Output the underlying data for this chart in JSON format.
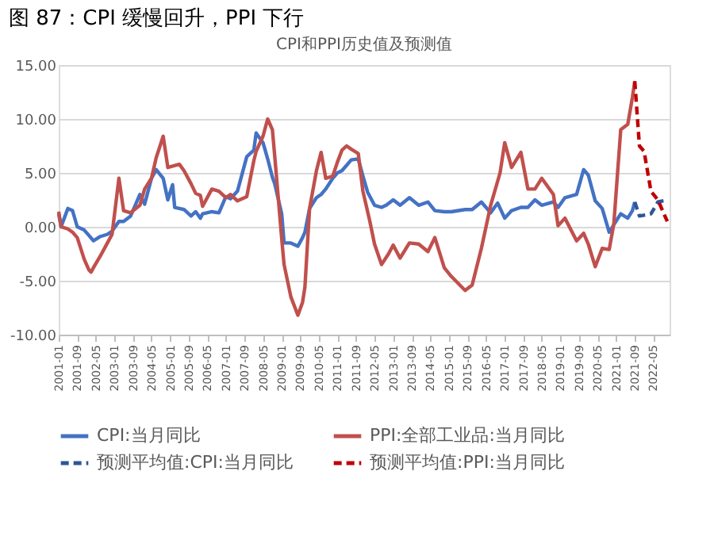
{
  "chart_data": {
    "type": "line",
    "title": "图 87：CPI 缓慢回升，PPI 下行",
    "subtitle": "CPI和PPI历史值及预测值",
    "ylim": [
      -10,
      15
    ],
    "yticks": [
      {
        "value": -10,
        "label": "-10.00"
      },
      {
        "value": -5,
        "label": "-5.00"
      },
      {
        "value": 0,
        "label": "0.00"
      },
      {
        "value": 5,
        "label": "5.00"
      },
      {
        "value": 10,
        "label": "10.00"
      },
      {
        "value": 15,
        "label": "15.00"
      }
    ],
    "xlim": [
      "2001-01",
      "2022-12"
    ],
    "xticks": [
      "2001-01",
      "2001-09",
      "2002-05",
      "2003-01",
      "2003-09",
      "2004-05",
      "2005-01",
      "2005-09",
      "2006-05",
      "2007-01",
      "2007-09",
      "2008-05",
      "2009-01",
      "2009-09",
      "2010-05",
      "2011-01",
      "2011-09",
      "2012-05",
      "2013-01",
      "2013-09",
      "2014-05",
      "2015-01",
      "2015-09",
      "2016-05",
      "2017-01",
      "2017-09",
      "2018-05",
      "2019-01",
      "2019-09",
      "2020-05",
      "2021-01",
      "2021-09",
      "2022-05"
    ],
    "grid": "y",
    "legend": "bottom",
    "series": [
      {
        "name": "CPI:当月同比",
        "color": "#4472c4",
        "line_style": "solid",
        "x": [
          "2001-01",
          "2001-02",
          "2001-05",
          "2001-07",
          "2001-09",
          "2001-12",
          "2002-02",
          "2002-04",
          "2002-07",
          "2002-10",
          "2002-12",
          "2003-03",
          "2003-05",
          "2003-08",
          "2003-12",
          "2004-02",
          "2004-05",
          "2004-07",
          "2004-10",
          "2004-12",
          "2005-02",
          "2005-03",
          "2005-05",
          "2005-07",
          "2005-10",
          "2005-12",
          "2006-02",
          "2006-03",
          "2006-07",
          "2006-10",
          "2007-01",
          "2007-03",
          "2007-06",
          "2007-10",
          "2008-01",
          "2008-02",
          "2008-05",
          "2008-07",
          "2008-09",
          "2008-10",
          "2009-01",
          "2009-02",
          "2009-05",
          "2009-08",
          "2009-10",
          "2009-11",
          "2010-01",
          "2010-04",
          "2010-06",
          "2010-08",
          "2010-11",
          "2011-01",
          "2011-03",
          "2011-05",
          "2011-07",
          "2011-10",
          "2011-12",
          "2012-02",
          "2012-05",
          "2012-08",
          "2012-10",
          "2013-01",
          "2013-04",
          "2013-08",
          "2013-12",
          "2014-04",
          "2014-07",
          "2014-11",
          "2015-02",
          "2015-08",
          "2015-11",
          "2016-03",
          "2016-07",
          "2016-10",
          "2017-01",
          "2017-04",
          "2017-08",
          "2017-11",
          "2018-02",
          "2018-05",
          "2018-10",
          "2018-12",
          "2019-03",
          "2019-08",
          "2019-11",
          "2020-01",
          "2020-04",
          "2020-07",
          "2020-10",
          "2020-12",
          "2021-03",
          "2021-06",
          "2021-08",
          "2021-09"
        ],
        "values": [
          1.2,
          0.0,
          1.7,
          1.5,
          0.0,
          -0.3,
          -0.8,
          -1.3,
          -0.9,
          -0.7,
          -0.4,
          0.5,
          0.5,
          1.0,
          3.0,
          2.1,
          4.5,
          5.3,
          4.5,
          2.5,
          3.9,
          1.8,
          1.7,
          1.6,
          1.0,
          1.4,
          0.8,
          1.2,
          1.4,
          1.3,
          2.8,
          2.6,
          3.3,
          6.5,
          7.1,
          8.7,
          7.8,
          6.3,
          4.6,
          4.0,
          1.2,
          -1.5,
          -1.5,
          -1.8,
          -1.0,
          -0.5,
          1.7,
          2.7,
          3.0,
          3.5,
          4.5,
          5.0,
          5.2,
          5.7,
          6.2,
          6.3,
          4.7,
          3.2,
          2.0,
          1.8,
          2.0,
          2.5,
          2.0,
          2.7,
          2.0,
          2.3,
          1.5,
          1.4,
          1.4,
          1.6,
          1.6,
          2.3,
          1.3,
          2.2,
          0.8,
          1.5,
          1.8,
          1.8,
          2.5,
          2.0,
          2.3,
          1.8,
          2.7,
          3.0,
          5.3,
          4.8,
          2.4,
          1.7,
          -0.5,
          0.2,
          1.2,
          0.8,
          1.5,
          2.3
        ]
      },
      {
        "name": "PPI:全部工业品:当月同比",
        "color": "#c0504d",
        "line_style": "solid",
        "x": [
          "2001-01",
          "2001-02",
          "2001-05",
          "2001-07",
          "2001-09",
          "2001-12",
          "2002-02",
          "2002-03",
          "2002-04",
          "2002-07",
          "2002-10",
          "2002-12",
          "2003-03",
          "2003-05",
          "2003-08",
          "2003-12",
          "2004-02",
          "2004-05",
          "2004-07",
          "2004-10",
          "2004-12",
          "2005-05",
          "2005-07",
          "2005-10",
          "2005-12",
          "2006-02",
          "2006-03",
          "2006-07",
          "2006-10",
          "2007-01",
          "2007-03",
          "2007-06",
          "2007-10",
          "2008-01",
          "2008-02",
          "2008-05",
          "2008-07",
          "2008-09",
          "2008-10",
          "2009-01",
          "2009-02",
          "2009-05",
          "2009-08",
          "2009-10",
          "2009-11",
          "2010-01",
          "2010-04",
          "2010-06",
          "2010-08",
          "2010-11",
          "2011-01",
          "2011-03",
          "2011-05",
          "2011-07",
          "2011-10",
          "2011-12",
          "2012-03",
          "2012-05",
          "2012-08",
          "2012-11",
          "2013-01",
          "2013-04",
          "2013-08",
          "2013-12",
          "2014-04",
          "2014-07",
          "2014-11",
          "2015-02",
          "2015-08",
          "2015-11",
          "2016-03",
          "2016-07",
          "2016-11",
          "2017-01",
          "2017-04",
          "2017-08",
          "2017-11",
          "2018-02",
          "2018-05",
          "2018-10",
          "2018-12",
          "2019-03",
          "2019-08",
          "2019-11",
          "2020-01",
          "2020-04",
          "2020-07",
          "2020-10",
          "2020-12",
          "2021-03",
          "2021-06",
          "2021-08",
          "2021-09"
        ],
        "values": [
          1.4,
          0.0,
          -0.2,
          -0.5,
          -1.0,
          -3.0,
          -4.0,
          -4.2,
          -3.8,
          -2.7,
          -1.5,
          -0.7,
          4.5,
          1.5,
          1.3,
          2.0,
          3.5,
          4.5,
          6.4,
          8.4,
          5.5,
          5.8,
          5.2,
          4.0,
          3.1,
          2.9,
          1.9,
          3.5,
          3.3,
          2.7,
          3.0,
          2.4,
          2.8,
          6.1,
          7.0,
          8.4,
          10.0,
          9.0,
          6.6,
          -1.1,
          -3.5,
          -6.5,
          -8.2,
          -7.0,
          -5.6,
          1.7,
          5.2,
          6.9,
          4.5,
          4.7,
          6.0,
          7.1,
          7.5,
          7.2,
          6.8,
          3.3,
          0.5,
          -1.6,
          -3.5,
          -2.5,
          -1.7,
          -2.9,
          -1.5,
          -1.6,
          -2.3,
          -1.0,
          -3.8,
          -4.6,
          -5.9,
          -5.4,
          -2.0,
          2.0,
          5.0,
          7.8,
          5.5,
          6.9,
          3.5,
          3.5,
          4.5,
          3.0,
          0.1,
          0.8,
          -1.3,
          -0.6,
          -1.6,
          -3.7,
          -2.0,
          -2.1,
          0.3,
          9.0,
          9.5,
          12.0,
          13.5
        ]
      },
      {
        "name": "预测平均值:CPI:当月同比",
        "color": "#2f5597",
        "line_style": "dashed",
        "x": [
          "2021-09",
          "2021-11",
          "2022-04",
          "2022-07",
          "2022-11"
        ],
        "values": [
          2.3,
          1.0,
          1.2,
          2.3,
          2.5
        ]
      },
      {
        "name": "预测平均值:PPI:当月同比",
        "color": "#c00000",
        "line_style": "dashed",
        "x": [
          "2021-09",
          "2021-11",
          "2022-01",
          "2022-04",
          "2022-07",
          "2022-11"
        ],
        "values": [
          13.5,
          7.5,
          7.0,
          3.3,
          2.5,
          0.5
        ]
      }
    ]
  }
}
